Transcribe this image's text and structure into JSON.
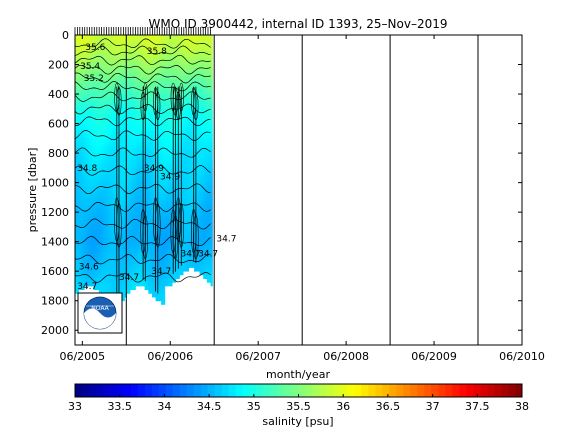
{
  "chart_data": {
    "type": "heatmap",
    "title": "WMO ID 3900442, internal ID 1393, 25–Nov–2019",
    "xlabel": "month/year",
    "ylabel": "pressure [dbar]",
    "x_tick_labels": [
      "06/2005",
      "06/2006",
      "06/2007",
      "06/2008",
      "06/2009",
      "06/2010"
    ],
    "y_tick_labels": [
      "0",
      "200",
      "400",
      "600",
      "800",
      "1000",
      "1200",
      "1400",
      "1600",
      "1800",
      "2000"
    ],
    "x_range": [
      "05/2005",
      "06/2010"
    ],
    "ylim": [
      0,
      2100
    ],
    "y_reversed": true,
    "year_dividers": [
      "12/2005",
      "12/2006",
      "12/2007",
      "12/2008",
      "12/2009"
    ],
    "data_extent": {
      "start": "05/2005",
      "end": "11/2006"
    },
    "profiles": {
      "depth": [
        0,
        100,
        200,
        300,
        400,
        500,
        600,
        800,
        1000,
        1200,
        1400,
        1600,
        1750
      ],
      "salinity": [
        35.9,
        35.8,
        35.6,
        35.4,
        35.2,
        35.0,
        34.9,
        34.75,
        34.65,
        34.55,
        34.5,
        34.6,
        34.7
      ]
    },
    "contour_labels": [
      {
        "text": "35.6",
        "month": 1.4,
        "depth": 100
      },
      {
        "text": "35.8",
        "month": 9.8,
        "depth": 130
      },
      {
        "text": "35.4",
        "month": 0.7,
        "depth": 230
      },
      {
        "text": "35.2",
        "month": 1.2,
        "depth": 310
      },
      {
        "text": "34.9",
        "month": 11.6,
        "depth": 980
      },
      {
        "text": "34.9",
        "month": 9.4,
        "depth": 920
      },
      {
        "text": "34.8",
        "month": 0.3,
        "depth": 920
      },
      {
        "text": "34.7",
        "month": 14.4,
        "depth": 1500
      },
      {
        "text": "34.7",
        "month": 16.8,
        "depth": 1500
      },
      {
        "text": "34.7",
        "month": 19.3,
        "depth": 1400
      },
      {
        "text": "34.6",
        "month": 0.5,
        "depth": 1590
      },
      {
        "text": "34.7",
        "month": 6.0,
        "depth": 1660
      },
      {
        "text": "34.7",
        "month": 10.4,
        "depth": 1620
      },
      {
        "text": "34.7",
        "month": 0.3,
        "depth": 1720
      }
    ],
    "colorbar": {
      "label": "salinity [psu]",
      "range": [
        33,
        38
      ],
      "tick_labels": [
        "33",
        "33.5",
        "34",
        "34.5",
        "35",
        "35.5",
        "36",
        "36.5",
        "37",
        "37.5",
        "38"
      ]
    },
    "logo": "noaa-logo"
  }
}
